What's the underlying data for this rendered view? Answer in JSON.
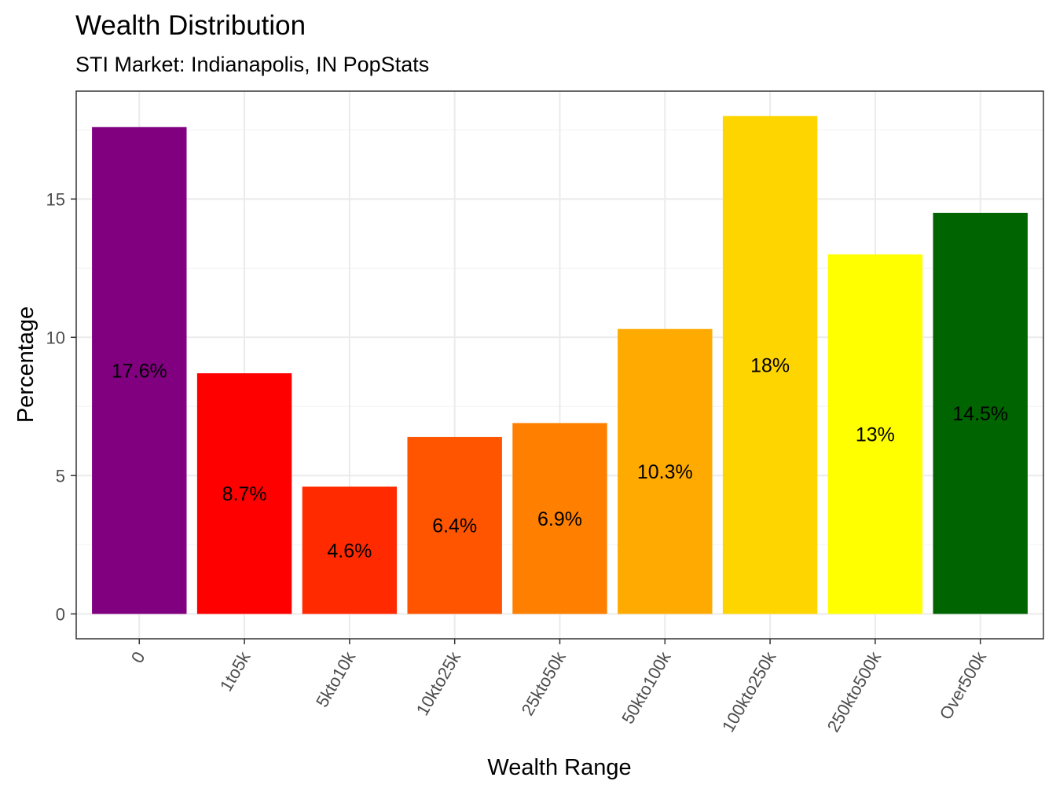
{
  "chart_data": {
    "type": "bar",
    "title": "Wealth Distribution",
    "subtitle": "STI Market: Indianapolis, IN PopStats",
    "xlabel": "Wealth Range",
    "ylabel": "Percentage",
    "categories": [
      "0",
      "1to5k",
      "5kto10k",
      "10kto25k",
      "25kto50k",
      "50kto100k",
      "100kto250k",
      "250kto500k",
      "Over500k"
    ],
    "values": [
      17.6,
      8.7,
      4.6,
      6.4,
      6.9,
      10.3,
      18.0,
      13.0,
      14.5
    ],
    "data_labels": [
      "17.6%",
      "8.7%",
      "4.6%",
      "6.4%",
      "6.9%",
      "10.3%",
      "18%",
      "13%",
      "14.5%"
    ],
    "colors": [
      "#800080",
      "#FF0000",
      "#FF2A00",
      "#FF5500",
      "#FF8000",
      "#FFAA00",
      "#FFD500",
      "#FFFF00",
      "#006400"
    ],
    "yticks": [
      0,
      5,
      10,
      15
    ],
    "ylim": [
      -0.9,
      18.9
    ],
    "grid": true,
    "legend": "none"
  }
}
